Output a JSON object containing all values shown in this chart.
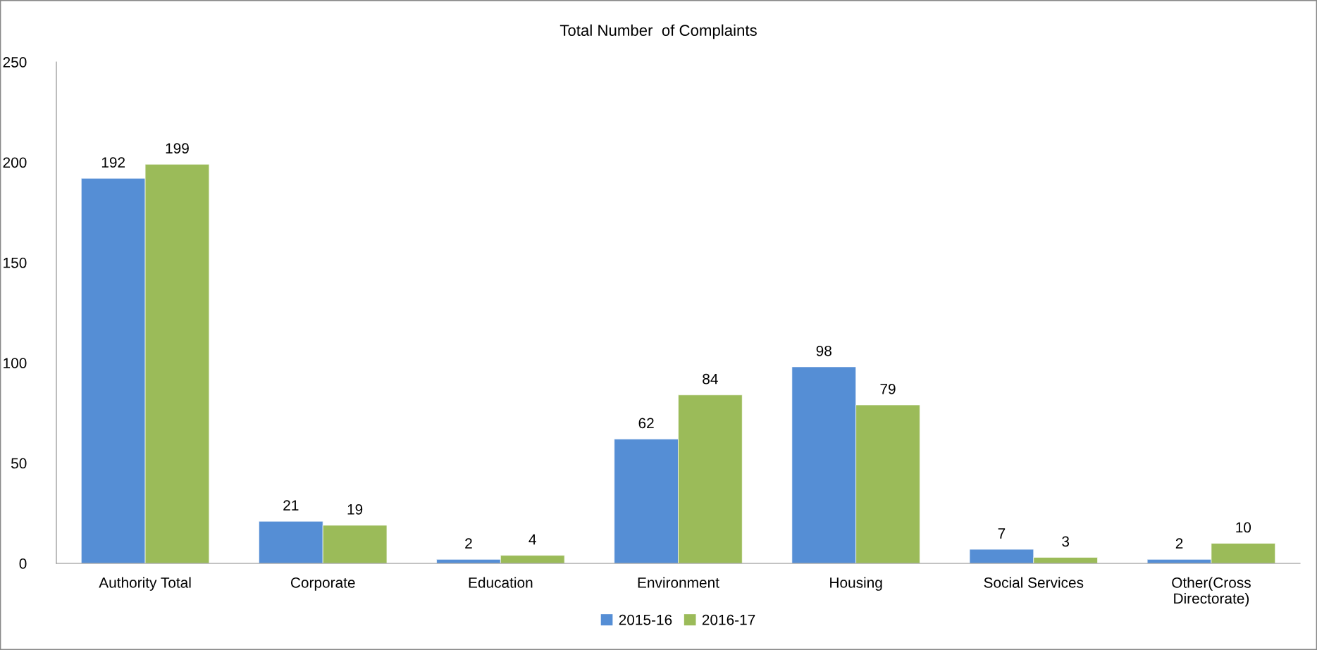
{
  "chart_data": {
    "type": "bar",
    "title": "Total Number  of Complaints",
    "categories": [
      "Authority Total",
      "Corporate",
      "Education",
      "Environment",
      "Housing",
      "Social Services",
      "Other(Cross Directorate)"
    ],
    "series": [
      {
        "name": "2015-16",
        "color": "#558ed5",
        "values": [
          192,
          21,
          2,
          62,
          98,
          7,
          2
        ]
      },
      {
        "name": "2016-17",
        "color": "#9bbb59",
        "values": [
          199,
          19,
          4,
          84,
          79,
          3,
          10
        ]
      }
    ],
    "ylim": [
      0,
      250
    ],
    "yticks": [
      0,
      50,
      100,
      150,
      200,
      250
    ],
    "grid": false,
    "legend": "bottom",
    "data_labels": true
  }
}
